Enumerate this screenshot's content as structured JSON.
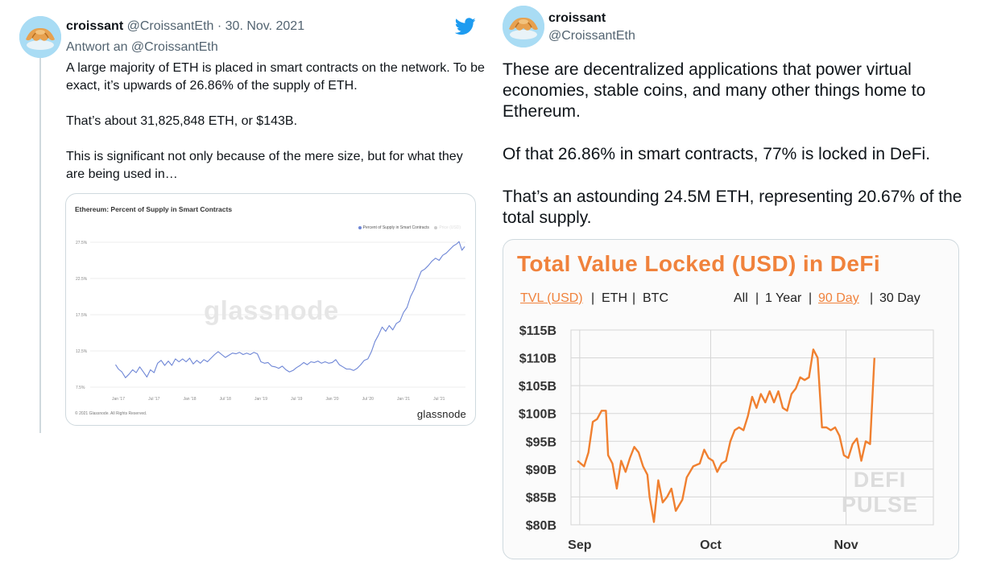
{
  "left_tweet": {
    "name": "croissant",
    "meta": "@CroissantEth · 30. Nov. 2021",
    "reply_to": "Antwort an @CroissantEth",
    "paragraphs": [
      "A large majority of ETH is placed in smart contracts on the network. To be exact, it’s upwards of 26.86% of the supply of ETH.",
      "That’s about 31,825,848 ETH, or $143B.",
      "This is significant not only because of the mere size, but for what they are being used in…"
    ],
    "icons": {
      "avatar": "croissant-avatar",
      "logo": "twitter-bird-icon"
    },
    "colors": {
      "bird": "#1d9bf0",
      "thread": "#cfd9de"
    }
  },
  "right_tweet": {
    "name": "croissant",
    "handle": "@CroissantEth",
    "paragraphs": [
      "These are decentralized applications that power virtual economies, stable coins, and many other things home to Ethereum.",
      "Of that 26.86% in smart contracts, 77% is locked in DeFi.",
      "That’s an astounding 24.5M ETH, representing 20.67% of the total supply."
    ]
  },
  "chart_data": [
    {
      "type": "line",
      "title": "Ethereum: Percent of Supply in Smart Contracts",
      "legend": [
        "Percent of Supply in Smart Contracts",
        "Price (USD)"
      ],
      "legend_placement": "top-right",
      "y_ticks": [
        "7.5%",
        "12.5%",
        "17.5%",
        "22.5%",
        "27.5%"
      ],
      "x_ticks": [
        "Jan '17",
        "Jul '17",
        "Jan '18",
        "Jul '18",
        "Jan '19",
        "Jul '19",
        "Jan '20",
        "Jul '20",
        "Jan '21",
        "Jul '21"
      ],
      "ylim": [
        7.5,
        27.5
      ],
      "grid": true,
      "footer": "© 2021 Glassnode. All Rights Reserved.",
      "brand": "glassnode",
      "watermark": "glassnode",
      "color": "#6e86d6",
      "series": [
        {
          "name": "Percent of Supply in Smart Contracts",
          "points": [
            [
              2016.96,
              10.6
            ],
            [
              2017.0,
              10.0
            ],
            [
              2017.05,
              9.6
            ],
            [
              2017.1,
              8.8
            ],
            [
              2017.15,
              9.3
            ],
            [
              2017.2,
              9.9
            ],
            [
              2017.25,
              9.5
            ],
            [
              2017.3,
              10.3
            ],
            [
              2017.35,
              9.6
            ],
            [
              2017.4,
              8.9
            ],
            [
              2017.45,
              9.9
            ],
            [
              2017.5,
              9.5
            ],
            [
              2017.55,
              10.8
            ],
            [
              2017.6,
              11.2
            ],
            [
              2017.65,
              10.5
            ],
            [
              2017.7,
              11.1
            ],
            [
              2017.75,
              10.5
            ],
            [
              2017.8,
              11.4
            ],
            [
              2017.85,
              11.0
            ],
            [
              2017.9,
              11.4
            ],
            [
              2017.95,
              11.0
            ],
            [
              2018.0,
              11.5
            ],
            [
              2018.05,
              10.7
            ],
            [
              2018.1,
              11.2
            ],
            [
              2018.15,
              10.8
            ],
            [
              2018.2,
              11.3
            ],
            [
              2018.25,
              11.0
            ],
            [
              2018.3,
              11.5
            ],
            [
              2018.35,
              12.0
            ],
            [
              2018.4,
              12.4
            ],
            [
              2018.45,
              12.0
            ],
            [
              2018.5,
              11.6
            ],
            [
              2018.55,
              11.9
            ],
            [
              2018.6,
              12.2
            ],
            [
              2018.65,
              12.1
            ],
            [
              2018.7,
              12.3
            ],
            [
              2018.75,
              12.0
            ],
            [
              2018.8,
              12.2
            ],
            [
              2018.85,
              12.0
            ],
            [
              2018.9,
              12.3
            ],
            [
              2018.95,
              12.1
            ],
            [
              2019.0,
              11.0
            ],
            [
              2019.05,
              10.8
            ],
            [
              2019.1,
              10.9
            ],
            [
              2019.15,
              10.4
            ],
            [
              2019.2,
              10.3
            ],
            [
              2019.25,
              10.1
            ],
            [
              2019.3,
              10.4
            ],
            [
              2019.35,
              9.9
            ],
            [
              2019.4,
              9.6
            ],
            [
              2019.45,
              9.8
            ],
            [
              2019.5,
              10.2
            ],
            [
              2019.55,
              10.5
            ],
            [
              2019.6,
              10.9
            ],
            [
              2019.65,
              10.6
            ],
            [
              2019.7,
              11.0
            ],
            [
              2019.75,
              10.9
            ],
            [
              2019.8,
              11.1
            ],
            [
              2019.85,
              10.8
            ],
            [
              2019.9,
              11.0
            ],
            [
              2019.95,
              10.8
            ],
            [
              2020.0,
              10.9
            ],
            [
              2020.05,
              11.3
            ],
            [
              2020.1,
              10.6
            ],
            [
              2020.15,
              10.3
            ],
            [
              2020.2,
              10.0
            ],
            [
              2020.25,
              10.0
            ],
            [
              2020.3,
              9.8
            ],
            [
              2020.35,
              10.1
            ],
            [
              2020.4,
              10.6
            ],
            [
              2020.45,
              11.2
            ],
            [
              2020.5,
              11.4
            ],
            [
              2020.55,
              12.4
            ],
            [
              2020.6,
              13.8
            ],
            [
              2020.65,
              14.7
            ],
            [
              2020.7,
              15.8
            ],
            [
              2020.75,
              15.2
            ],
            [
              2020.8,
              16.0
            ],
            [
              2020.85,
              15.4
            ],
            [
              2020.9,
              16.3
            ],
            [
              2020.95,
              16.6
            ],
            [
              2021.0,
              17.8
            ],
            [
              2021.05,
              18.5
            ],
            [
              2021.1,
              20.0
            ],
            [
              2021.15,
              21.0
            ],
            [
              2021.2,
              22.3
            ],
            [
              2021.25,
              23.5
            ],
            [
              2021.3,
              23.8
            ],
            [
              2021.35,
              24.3
            ],
            [
              2021.4,
              24.9
            ],
            [
              2021.45,
              25.3
            ],
            [
              2021.5,
              25.0
            ],
            [
              2021.55,
              25.7
            ],
            [
              2021.6,
              26.0
            ],
            [
              2021.65,
              26.5
            ],
            [
              2021.7,
              27.0
            ],
            [
              2021.75,
              27.3
            ],
            [
              2021.78,
              27.6
            ],
            [
              2021.82,
              26.4
            ],
            [
              2021.86,
              26.9
            ]
          ]
        }
      ]
    },
    {
      "type": "line",
      "title": "Total Value Locked (USD) in DeFi",
      "units": [
        "TVL (USD)",
        "ETH",
        "BTC"
      ],
      "active_unit": "TVL (USD)",
      "ranges": [
        "All",
        "1 Year",
        "90 Day",
        "30 Day"
      ],
      "active_range": "90 Day",
      "y_ticks": [
        "$80B",
        "$85B",
        "$90B",
        "$95B",
        "$100B",
        "$105B",
        "$110B",
        "$115B"
      ],
      "x_ticks": [
        {
          "label": "Sep",
          "day": 0
        },
        {
          "label": "Oct",
          "day": 30
        },
        {
          "label": "Nov",
          "day": 61
        }
      ],
      "ylim": [
        80,
        115
      ],
      "xlim": [
        -2,
        81
      ],
      "grid": true,
      "watermark": [
        "DEFI",
        "PULSE"
      ],
      "color": "#f08030",
      "series": [
        {
          "name": "Total Value Locked (USD) in DeFi",
          "points": [
            [
              -0.5,
              91.5
            ],
            [
              1.0,
              90.5
            ],
            [
              2.0,
              93.0
            ],
            [
              3.0,
              98.5
            ],
            [
              4.0,
              99.0
            ],
            [
              5.0,
              100.5
            ],
            [
              6.0,
              100.5
            ],
            [
              6.5,
              92.5
            ],
            [
              7.5,
              91.0
            ],
            [
              8.5,
              86.5
            ],
            [
              9.5,
              91.5
            ],
            [
              10.5,
              89.5
            ],
            [
              11.5,
              92.0
            ],
            [
              12.5,
              94.0
            ],
            [
              13.5,
              93.0
            ],
            [
              14.5,
              90.5
            ],
            [
              15.5,
              89.0
            ],
            [
              16.0,
              85.0
            ],
            [
              17.0,
              80.5
            ],
            [
              18.0,
              88.0
            ],
            [
              19.0,
              84.0
            ],
            [
              20.0,
              85.0
            ],
            [
              21.0,
              86.5
            ],
            [
              22.0,
              82.5
            ],
            [
              23.5,
              84.5
            ],
            [
              24.5,
              88.5
            ],
            [
              26.0,
              90.5
            ],
            [
              27.5,
              91.0
            ],
            [
              28.5,
              93.5
            ],
            [
              29.5,
              92.0
            ],
            [
              30.5,
              91.5
            ],
            [
              31.5,
              89.5
            ],
            [
              32.5,
              91.0
            ],
            [
              33.5,
              91.5
            ],
            [
              34.5,
              95.0
            ],
            [
              35.5,
              97.0
            ],
            [
              36.5,
              97.5
            ],
            [
              37.5,
              97.0
            ],
            [
              38.5,
              99.5
            ],
            [
              39.5,
              103.0
            ],
            [
              40.5,
              101.0
            ],
            [
              41.5,
              103.5
            ],
            [
              42.5,
              102.0
            ],
            [
              43.5,
              104.0
            ],
            [
              44.5,
              102.0
            ],
            [
              45.5,
              104.0
            ],
            [
              46.5,
              101.0
            ],
            [
              47.5,
              100.5
            ],
            [
              48.5,
              103.5
            ],
            [
              49.5,
              104.5
            ],
            [
              50.5,
              106.5
            ],
            [
              51.5,
              106.0
            ],
            [
              52.5,
              106.5
            ],
            [
              53.5,
              111.5
            ],
            [
              54.5,
              110.0
            ],
            [
              55.5,
              97.5
            ],
            [
              56.5,
              97.5
            ],
            [
              57.5,
              97.0
            ],
            [
              58.5,
              97.5
            ],
            [
              59.5,
              96.0
            ],
            [
              60.5,
              92.5
            ],
            [
              61.5,
              92.0
            ],
            [
              62.5,
              94.5
            ],
            [
              63.5,
              95.5
            ],
            [
              64.5,
              91.5
            ],
            [
              65.5,
              95.0
            ],
            [
              66.5,
              94.5
            ],
            [
              67.5,
              110.0
            ]
          ]
        }
      ]
    }
  ]
}
